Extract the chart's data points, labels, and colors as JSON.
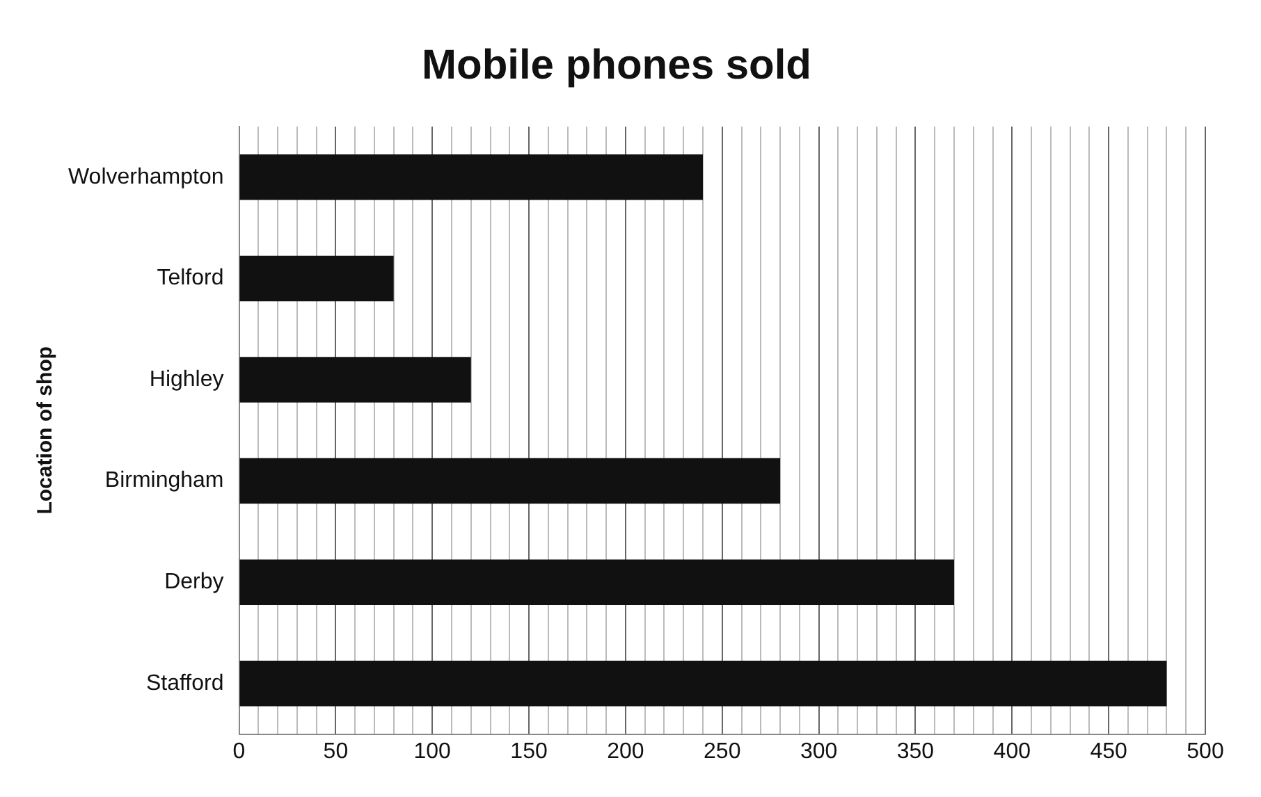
{
  "chart_data": {
    "type": "bar",
    "orientation": "horizontal",
    "title": "Mobile phones sold",
    "ylabel": "Location of shop",
    "categories": [
      "Wolverhampton",
      "Telford",
      "Highley",
      "Birmingham",
      "Derby",
      "Stafford"
    ],
    "values": [
      240,
      80,
      120,
      280,
      370,
      480
    ],
    "color": "#111111",
    "xlim": [
      0,
      500
    ],
    "xticks": [
      0,
      {
        "value": 10,
        "label": null
      },
      {
        "value": 20,
        "label": null
      },
      {
        "value": 30,
        "label": null
      },
      {
        "value": 40,
        "label": null
      },
      50,
      {
        "value": 60,
        "label": null
      },
      {
        "value": 70,
        "label": null
      },
      {
        "value": 80,
        "label": null
      },
      {
        "value": 90,
        "label": null
      },
      100,
      {
        "value": 110,
        "label": null
      },
      {
        "value": 120,
        "label": null
      },
      {
        "value": 130,
        "label": null
      },
      {
        "value": 140,
        "label": null
      },
      150,
      {
        "value": 160,
        "label": null
      },
      {
        "value": 170,
        "label": null
      },
      {
        "value": 180,
        "label": null
      },
      {
        "value": 190,
        "label": null
      },
      200,
      {
        "value": 210,
        "label": null
      },
      {
        "value": 220,
        "label": null
      },
      {
        "value": 230,
        "label": null
      },
      {
        "value": 240,
        "label": null
      },
      250,
      {
        "value": 260,
        "label": null
      },
      {
        "value": 270,
        "label": null
      },
      {
        "value": 280,
        "label": null
      },
      {
        "value": 290,
        "label": null
      },
      300,
      {
        "value": 310,
        "label": null
      },
      {
        "value": 320,
        "label": null
      },
      {
        "value": 330,
        "label": null
      },
      {
        "value": 340,
        "label": null
      },
      350,
      {
        "value": 360,
        "label": null
      },
      {
        "value": 370,
        "label": null
      },
      {
        "value": 380,
        "label": null
      },
      {
        "value": 390,
        "label": null
      },
      400,
      {
        "value": 410,
        "label": null
      },
      {
        "value": 420,
        "label": null
      },
      {
        "value": 430,
        "label": null
      },
      {
        "value": 440,
        "label": null
      },
      450,
      {
        "value": 460,
        "label": null
      },
      {
        "value": 470,
        "label": null
      },
      {
        "value": 480,
        "label": null
      },
      {
        "value": 490,
        "label": null
      },
      500
    ],
    "grid": "x",
    "legend": false
  }
}
